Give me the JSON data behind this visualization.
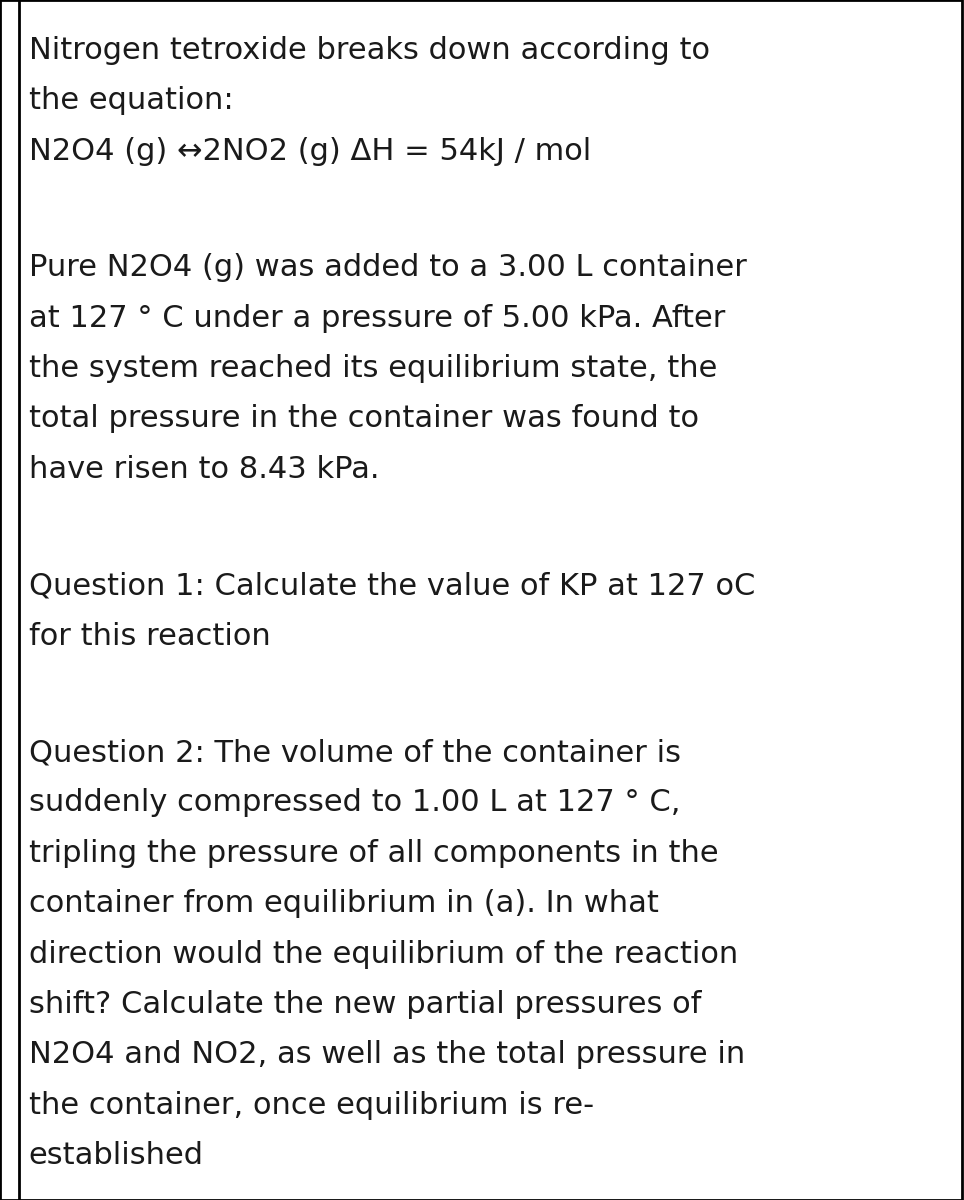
{
  "background_color": "#ffffff",
  "border_color": "#000000",
  "text_color": "#1a1a1a",
  "font_family": "DejaVu Sans",
  "font_size": 22,
  "paragraphs": [
    "Nitrogen tetroxide breaks down according to\nthe equation:\nN2O4 (g) ↔2NO2 (g) ΔH = 54kJ / mol",
    "Pure N2O4 (g) was added to a 3.00 L container\nat 127 ° C under a pressure of 5.00 kPa. After\nthe system reached its equilibrium state, the\ntotal pressure in the container was found to\nhave risen to 8.43 kPa.",
    "Question 1: Calculate the value of KP at 127 oC\nfor this reaction",
    "Question 2: The volume of the container is\nsuddenly compressed to 1.00 L at 127 ° C,\ntripling the pressure of all components in the\ncontainer from equilibrium in (a). In what\ndirection would the equilibrium of the reaction\nshift? Calculate the new partial pressures of\nN2O4 and NO2, as well as the total pressure in\nthe container, once equilibrium is re-\nestablished"
  ],
  "figsize": [
    9.64,
    12.0
  ],
  "dpi": 100
}
